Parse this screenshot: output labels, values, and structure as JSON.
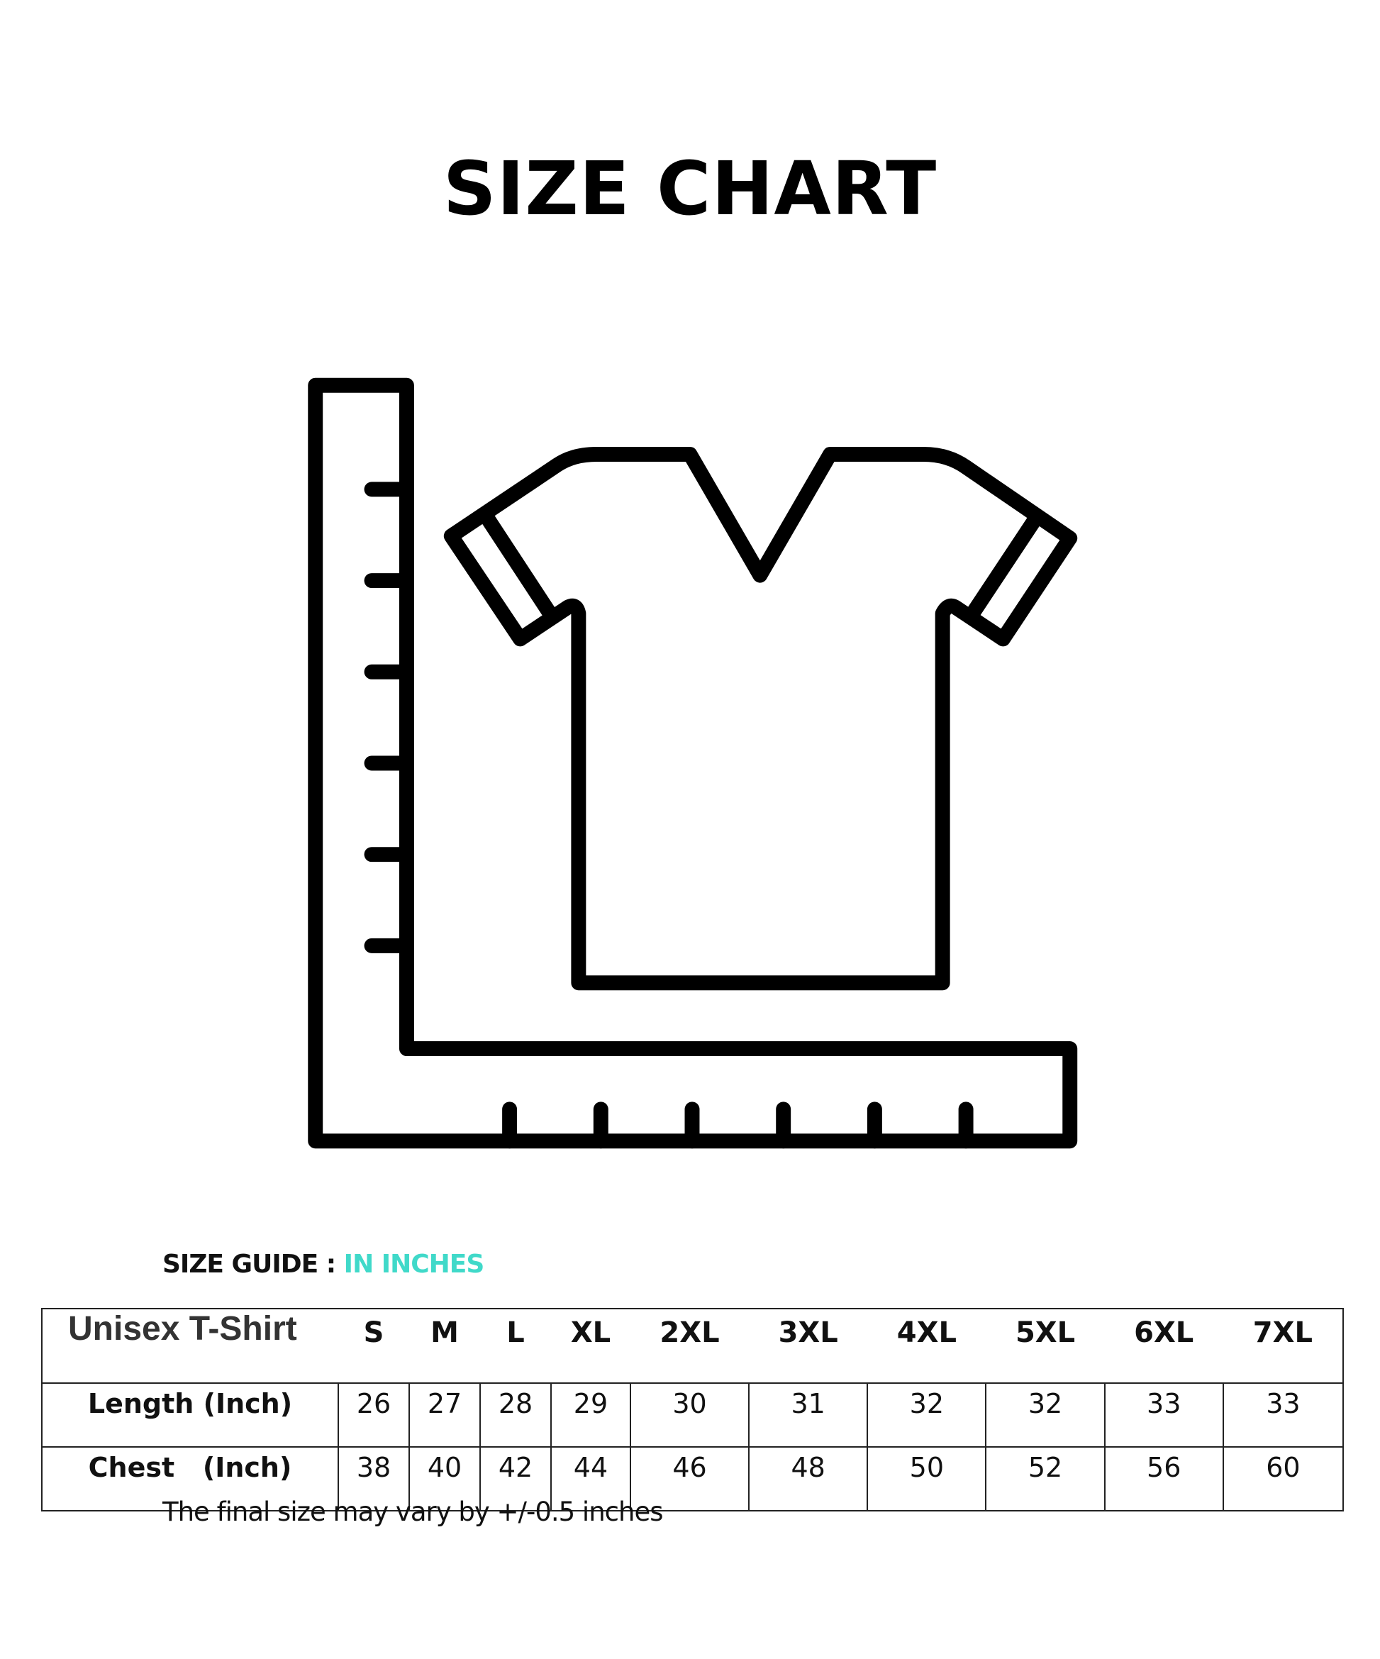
{
  "title": "SIZE CHART",
  "icon": "ruler-tshirt-icon",
  "guide": {
    "label": "SIZE GUIDE : ",
    "unit": "IN INCHES",
    "accent_color": "#40d9c9"
  },
  "table": {
    "corner": "Unisex T-Shirt",
    "sizes": [
      "S",
      "M",
      "L",
      "XL",
      "2XL",
      "3XL",
      "4XL",
      "5XL",
      "6XL",
      "7XL"
    ],
    "rows": [
      {
        "label": "Length (Inch)",
        "values": [
          "26",
          "27",
          "28",
          "29",
          "30",
          "31",
          "32",
          "32",
          "33",
          "33"
        ]
      },
      {
        "label": "Chest   (Inch)",
        "values": [
          "38",
          "40",
          "42",
          "44",
          "46",
          "48",
          "50",
          "52",
          "56",
          "60"
        ]
      }
    ]
  },
  "note": "The final size may vary by +/-0.5 inches"
}
